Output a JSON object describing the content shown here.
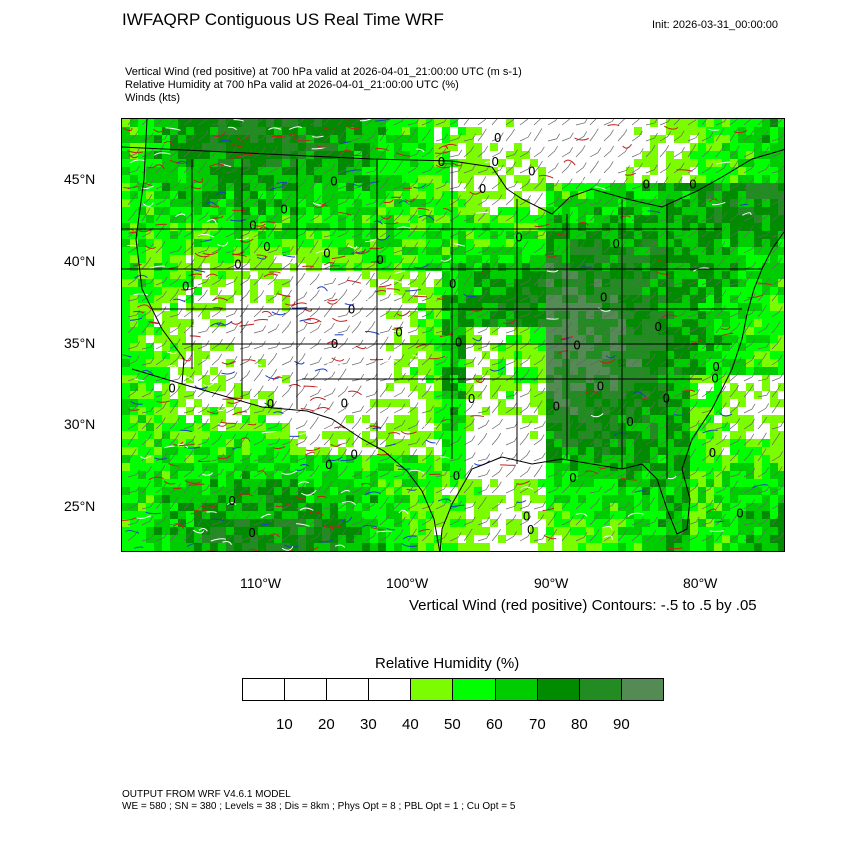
{
  "title": "IWFAQRP Contiguous US Real Time WRF",
  "init_label": "Init: 2026-03-31_00:00:00",
  "subtitles": [
    "Vertical Wind (red positive) at 700 hPa valid at 2026-04-01_21:00:00 UTC   (m s-1)",
    "Relative Humidity at 700 hPa valid at 2026-04-01_21:00:00 UTC   (%)",
    "Winds   (kts)"
  ],
  "map": {
    "lat_labels": [
      "45°N",
      "40°N",
      "35°N",
      "30°N",
      "25°N"
    ],
    "lon_labels": [
      "110°W",
      "100°W",
      "90°W",
      "80°W"
    ],
    "contour_note": "Vertical Wind (red positive) Contours: -.5 to .5 by .05"
  },
  "colorbar": {
    "title": "Relative Humidity  (%)",
    "labels": [
      "10",
      "20",
      "30",
      "40",
      "50",
      "60",
      "70",
      "80",
      "90"
    ],
    "colors": [
      "#ffffff",
      "#ffffff",
      "#ffffff",
      "#ffffff",
      "#7cfc00",
      "#00ff00",
      "#00cd00",
      "#008b00",
      "#228b22",
      "#548b54"
    ]
  },
  "footer": [
    "OUTPUT FROM WRF V4.6.1 MODEL",
    "WE = 580 ; SN = 380 ; Levels = 38 ; Dis = 8km ; Phys Opt = 8 ; PBL Opt = 1 ; Cu Opt = 5"
  ]
}
